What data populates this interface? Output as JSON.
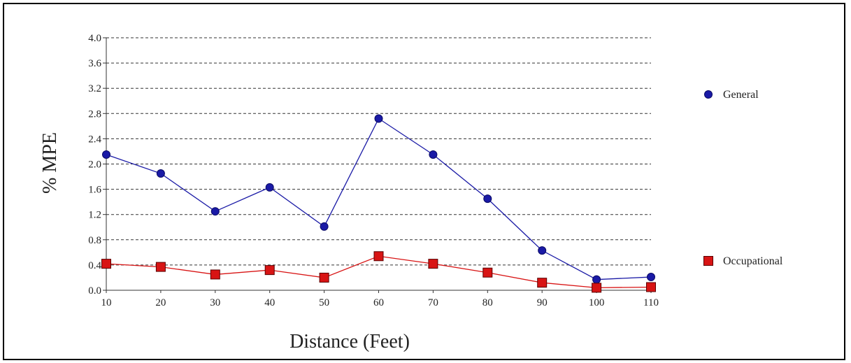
{
  "chart_data": {
    "type": "line",
    "xlabel": "Distance (Feet)",
    "ylabel": "% MPE",
    "x": [
      10,
      20,
      30,
      40,
      50,
      60,
      70,
      80,
      90,
      100,
      110
    ],
    "xlim": [
      10,
      110
    ],
    "ylim": [
      0,
      4
    ],
    "yticks": [
      "0.0",
      "0.4",
      "0.8",
      "1.2",
      "1.6",
      "2.0",
      "2.4",
      "2.8",
      "3.2",
      "3.6",
      "4.0"
    ],
    "xticks": [
      "10",
      "20",
      "30",
      "40",
      "50",
      "60",
      "70",
      "80",
      "90",
      "100",
      "110"
    ],
    "grid": true,
    "legend_position": "right",
    "series": [
      {
        "name": "General",
        "color": "#1a1aa6",
        "marker": "circle",
        "values": [
          2.15,
          1.85,
          1.25,
          1.63,
          1.01,
          2.72,
          2.15,
          1.45,
          0.63,
          0.17,
          0.21
        ]
      },
      {
        "name": "Occupational",
        "color": "#d81414",
        "marker": "square",
        "values": [
          0.42,
          0.37,
          0.25,
          0.32,
          0.2,
          0.54,
          0.42,
          0.28,
          0.12,
          0.04,
          0.05
        ]
      }
    ]
  }
}
